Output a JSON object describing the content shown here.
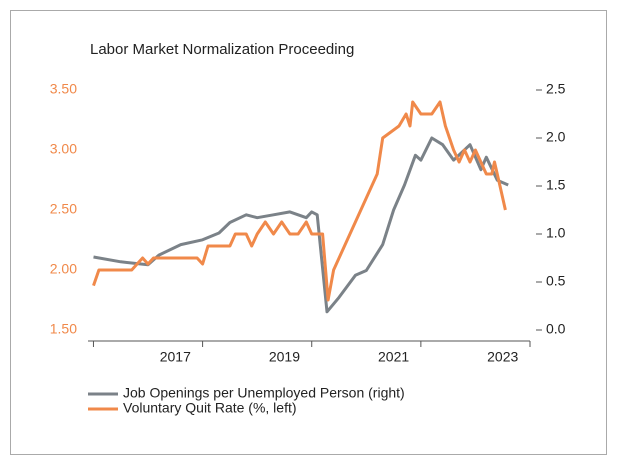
{
  "chart_data": {
    "type": "line",
    "title": "Labor Market Normalization Proceeding",
    "xlim": [
      2015.9,
      2024
    ],
    "xticks": [
      2016,
      2018,
      2020,
      2022,
      2024
    ],
    "xtick_labels": [
      2017,
      2019,
      2021,
      2023
    ],
    "ylim": [
      1.5,
      3.5
    ],
    "yticks": [
      {
        "value": 1.5,
        "label": "1.50"
      },
      {
        "value": 2,
        "label": "2.00"
      },
      {
        "value": 2.5,
        "label": "2.50"
      },
      {
        "value": 3,
        "label": "3.00"
      },
      {
        "value": 3.5,
        "label": "3.50"
      }
    ],
    "y2lim": [
      0,
      2.5
    ],
    "y2ticks": [
      {
        "value": 0,
        "label": "0.0"
      },
      {
        "value": 0.5,
        "label": "0.5"
      },
      {
        "value": 1,
        "label": "1.0"
      },
      {
        "value": 1.5,
        "label": "1.5"
      },
      {
        "value": 2,
        "label": "2.0"
      },
      {
        "value": 2.5,
        "label": "2.5"
      }
    ],
    "legend": "bottom-left",
    "series": [
      {
        "name": "Job Openings per Unemployed Person (right)",
        "color": "#7b8288",
        "axis": "y2",
        "x": [
          2016.0,
          2016.5,
          2017.0,
          2017.2,
          2017.6,
          2018.0,
          2018.3,
          2018.5,
          2018.8,
          2019.0,
          2019.3,
          2019.6,
          2019.9,
          2020.0,
          2020.1,
          2020.28,
          2020.5,
          2020.8,
          2021.0,
          2021.3,
          2021.5,
          2021.7,
          2021.9,
          2022.0,
          2022.2,
          2022.4,
          2022.6,
          2022.9,
          2023.1,
          2023.2,
          2023.4,
          2023.6
        ],
        "values": [
          0.76,
          0.71,
          0.68,
          0.78,
          0.89,
          0.94,
          1.01,
          1.12,
          1.2,
          1.17,
          1.2,
          1.23,
          1.17,
          1.23,
          1.2,
          0.19,
          0.34,
          0.57,
          0.62,
          0.89,
          1.25,
          1.51,
          1.82,
          1.77,
          2.0,
          1.93,
          1.77,
          1.93,
          1.67,
          1.8,
          1.56,
          1.51
        ]
      },
      {
        "name": "Voluntary Quit Rate (%, left)",
        "color": "#f0894a",
        "x": [
          2016.0,
          2016.1,
          2016.7,
          2016.8,
          2016.9,
          2017.0,
          2017.1,
          2017.9,
          2018.0,
          2018.1,
          2018.5,
          2018.6,
          2018.8,
          2018.9,
          2019.0,
          2019.15,
          2019.3,
          2019.45,
          2019.6,
          2019.75,
          2019.9,
          2020.0,
          2020.15,
          2020.2,
          2020.3,
          2020.4,
          2020.6,
          2020.8,
          2021.0,
          2021.2,
          2021.3,
          2021.6,
          2021.73,
          2021.8,
          2021.85,
          2022.0,
          2022.2,
          2022.35,
          2022.45,
          2022.6,
          2022.7,
          2022.8,
          2022.9,
          2023.0,
          2023.2,
          2023.3,
          2023.35,
          2023.45,
          2023.55
        ],
        "values": [
          1.87,
          2.0,
          2.0,
          2.05,
          2.1,
          2.05,
          2.1,
          2.1,
          2.05,
          2.2,
          2.2,
          2.3,
          2.3,
          2.2,
          2.3,
          2.4,
          2.3,
          2.4,
          2.3,
          2.3,
          2.4,
          2.3,
          2.3,
          2.3,
          1.75,
          2.0,
          2.2,
          2.4,
          2.6,
          2.8,
          3.1,
          3.2,
          3.3,
          3.2,
          3.4,
          3.3,
          3.3,
          3.4,
          3.2,
          3.0,
          2.9,
          3.0,
          2.9,
          3.0,
          2.8,
          2.8,
          2.9,
          2.7,
          2.5
        ]
      }
    ]
  }
}
